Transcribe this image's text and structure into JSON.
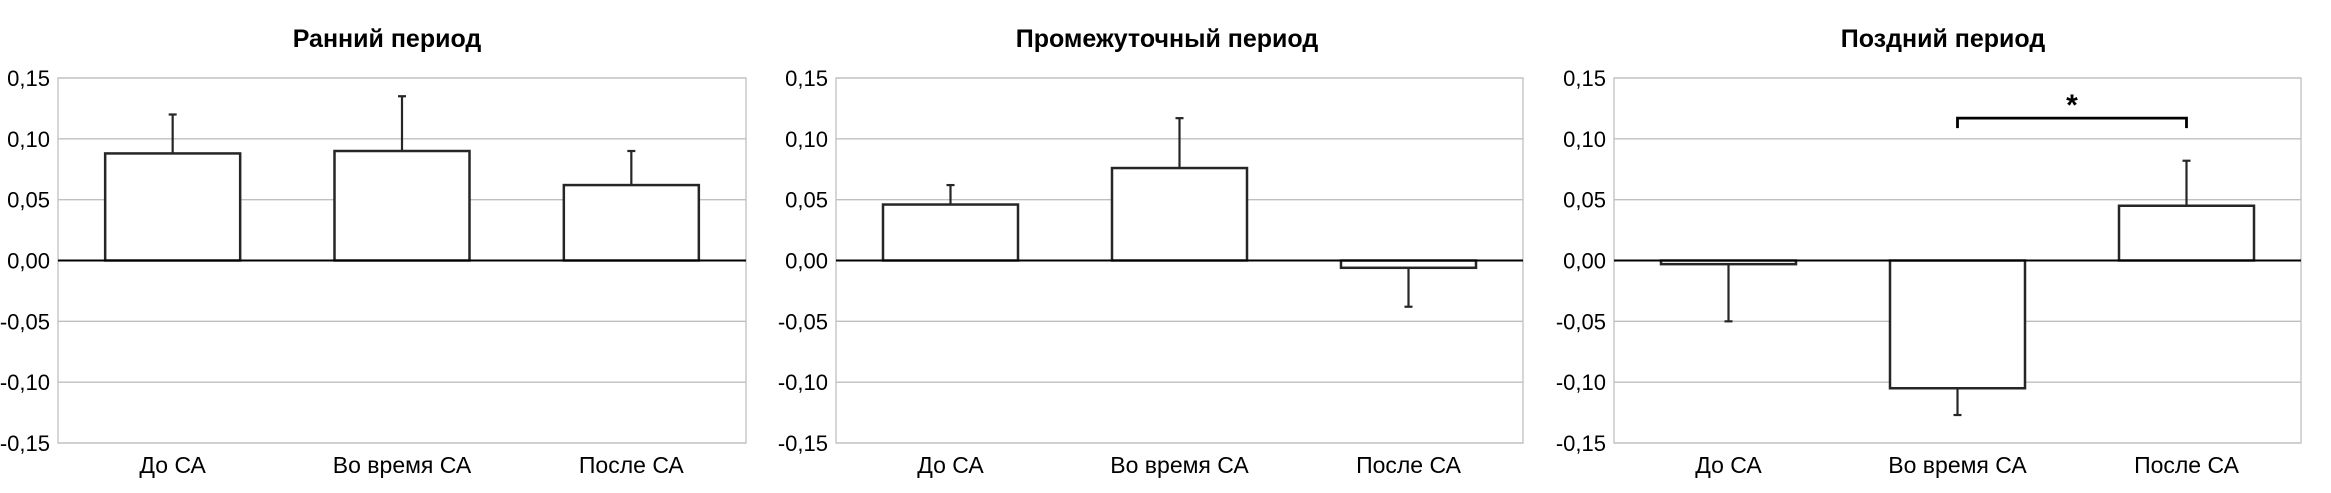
{
  "chart_data": [
    {
      "type": "bar",
      "title": "Ранний период",
      "categories": [
        "До СА",
        "Во время СА",
        "После СА"
      ],
      "values": [
        0.088,
        0.09,
        0.062
      ],
      "error_upper": [
        0.032,
        0.045,
        0.028
      ],
      "yticks": [
        "0,15",
        "0,10",
        "0,05",
        "0,00",
        "-0,05",
        "-0,10",
        "-0,15"
      ],
      "ylim": [
        -0.15,
        0.15
      ],
      "grid": true
    },
    {
      "type": "bar",
      "title": "Промежуточный период",
      "categories": [
        "До СА",
        "Во время СА",
        "После СА"
      ],
      "values": [
        0.046,
        0.076,
        -0.006
      ],
      "error_upper": [
        0.016,
        0.041,
        null
      ],
      "error_lower": [
        null,
        null,
        0.032
      ],
      "yticks": [
        "0,15",
        "0,10",
        "0,05",
        "0,00",
        "-0,05",
        "-0,10",
        "-0,15"
      ],
      "ylim": [
        -0.15,
        0.15
      ],
      "grid": true
    },
    {
      "type": "bar",
      "title": "Поздний период",
      "categories": [
        "До СА",
        "Во время СА",
        "После СА"
      ],
      "values": [
        -0.003,
        -0.105,
        0.045
      ],
      "error_upper": [
        null,
        null,
        0.037
      ],
      "error_lower": [
        0.047,
        0.022,
        null
      ],
      "yticks": [
        "0,15",
        "0,10",
        "0,05",
        "0,00",
        "-0,05",
        "-0,10",
        "-0,15"
      ],
      "ylim": [
        -0.15,
        0.15
      ],
      "grid": true,
      "significance": {
        "from": 1,
        "to": 2,
        "level": 0.117,
        "label": "*"
      }
    }
  ]
}
